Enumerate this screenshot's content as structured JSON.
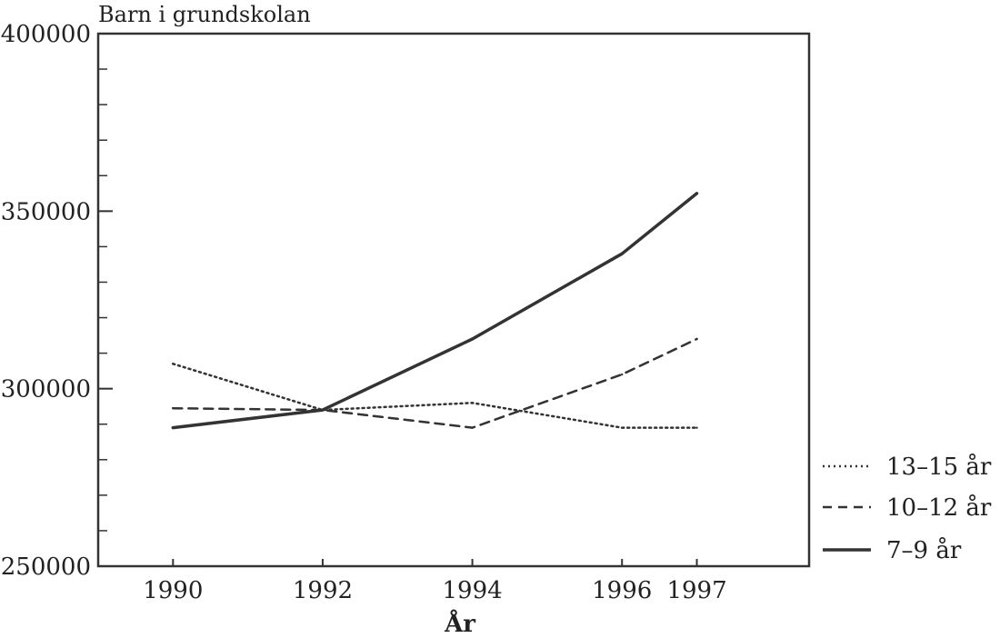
{
  "chart_data": {
    "type": "line",
    "title": "Barn i grundskolan",
    "xlabel": "År",
    "ylabel": "",
    "x": [
      1990,
      1992,
      1994,
      1996,
      1997
    ],
    "xticks": [
      "1990",
      "1992",
      "1994",
      "1996",
      "1997"
    ],
    "yticks": [
      "250000",
      "300000",
      "350000",
      "400000"
    ],
    "ylim": [
      250000,
      400000
    ],
    "grid": false,
    "legend_position": "right-bottom",
    "series": [
      {
        "name": "13–15 år",
        "style": "dotted",
        "color": "#333333",
        "values": [
          307000,
          294000,
          296000,
          289000,
          289000
        ]
      },
      {
        "name": "10–12 år",
        "style": "dashed",
        "color": "#333333",
        "values": [
          294500,
          294000,
          289000,
          304000,
          314000
        ]
      },
      {
        "name": "7–9 år",
        "style": "solid",
        "color": "#333333",
        "values": [
          289000,
          294000,
          314000,
          338000,
          355000
        ]
      }
    ]
  }
}
